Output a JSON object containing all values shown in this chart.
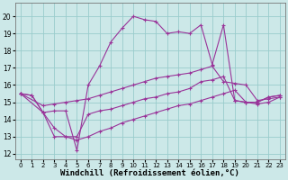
{
  "bg_color": "#cce8e8",
  "line_color": "#993399",
  "grid_color": "#99cccc",
  "xlabel": "Windchill (Refroidissement éolien,°C)",
  "xlabel_fontsize": 6.5,
  "ylabel_values": [
    12,
    13,
    14,
    15,
    16,
    17,
    18,
    19,
    20
  ],
  "xlim": [
    -0.5,
    23.5
  ],
  "ylim": [
    11.7,
    20.8
  ],
  "xticks": [
    0,
    1,
    2,
    3,
    4,
    5,
    6,
    7,
    8,
    9,
    10,
    11,
    12,
    13,
    14,
    15,
    16,
    17,
    18,
    19,
    20,
    21,
    22,
    23
  ],
  "curve1_x": [
    0,
    1,
    2,
    3,
    4,
    5,
    6,
    7,
    8,
    9,
    10,
    11,
    12,
    13,
    14,
    15,
    16,
    17,
    18,
    19,
    20,
    21,
    22,
    23
  ],
  "curve1_y": [
    15.5,
    15.4,
    14.4,
    14.5,
    14.5,
    12.2,
    16.0,
    17.1,
    18.5,
    19.3,
    20.0,
    19.8,
    19.7,
    19.0,
    19.1,
    19.0,
    19.5,
    17.2,
    19.5,
    15.1,
    15.0,
    15.0,
    15.3,
    15.4
  ],
  "curve2_x": [
    0,
    1,
    2,
    3,
    4,
    5,
    6,
    7,
    8,
    9,
    10,
    11,
    12,
    13,
    14,
    15,
    16,
    17,
    18,
    19,
    20,
    21,
    22,
    23
  ],
  "curve2_y": [
    15.5,
    15.4,
    14.4,
    13.5,
    13.0,
    13.0,
    14.3,
    14.5,
    14.6,
    14.8,
    15.0,
    15.2,
    15.3,
    15.5,
    15.6,
    15.8,
    16.2,
    16.3,
    16.5,
    15.1,
    15.0,
    15.0,
    15.3,
    15.4
  ],
  "line1_x": [
    0,
    2,
    3,
    4,
    5,
    6,
    7,
    8,
    9,
    10,
    11,
    12,
    13,
    14,
    15,
    16,
    17,
    18,
    19,
    20,
    21,
    22,
    23
  ],
  "line1_y": [
    15.5,
    14.8,
    14.9,
    15.0,
    15.1,
    15.2,
    15.4,
    15.6,
    15.8,
    16.0,
    16.2,
    16.4,
    16.5,
    16.6,
    16.7,
    16.9,
    17.1,
    16.2,
    16.1,
    16.0,
    15.1,
    15.2,
    15.3
  ],
  "line2_x": [
    0,
    2,
    3,
    4,
    5,
    6,
    7,
    8,
    9,
    10,
    11,
    12,
    13,
    14,
    15,
    16,
    17,
    18,
    19,
    20,
    21,
    22,
    23
  ],
  "line2_y": [
    15.5,
    14.4,
    13.0,
    13.0,
    12.8,
    13.0,
    13.3,
    13.5,
    13.8,
    14.0,
    14.2,
    14.4,
    14.6,
    14.8,
    14.9,
    15.1,
    15.3,
    15.5,
    15.7,
    15.0,
    14.9,
    15.0,
    15.3
  ]
}
